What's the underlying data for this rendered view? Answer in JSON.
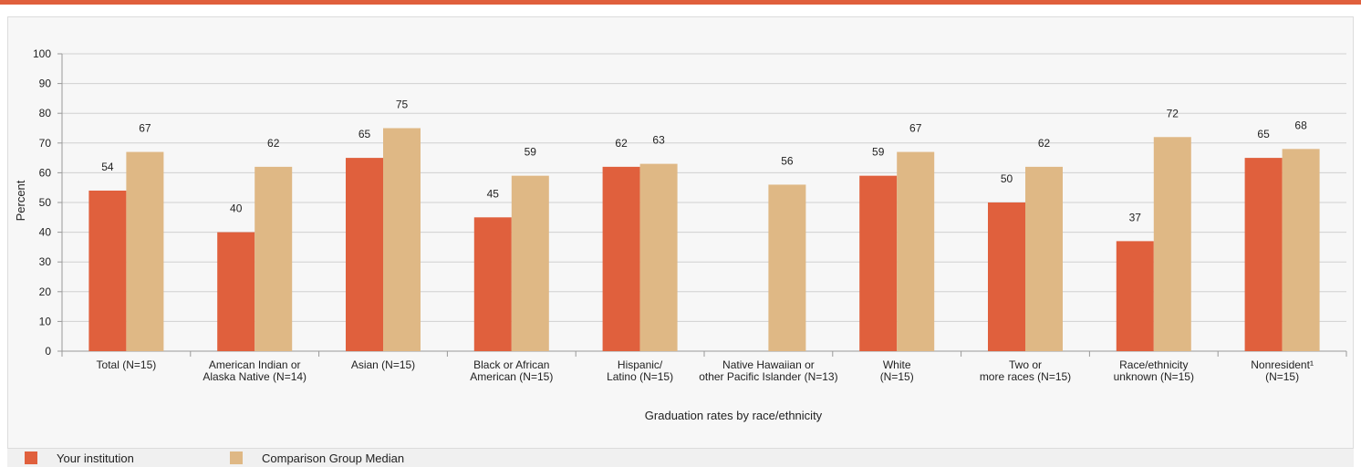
{
  "chart_data": {
    "type": "bar",
    "categories": [
      [
        "Total (N=15)"
      ],
      [
        "American Indian or",
        "Alaska Native (N=14)"
      ],
      [
        "Asian (N=15)"
      ],
      [
        "Black or African",
        "American (N=15)"
      ],
      [
        "Hispanic/",
        "Latino (N=15)"
      ],
      [
        "Native Hawaiian or",
        "other Pacific Islander (N=13)"
      ],
      [
        "White",
        "(N=15)"
      ],
      [
        "Two or",
        "more races (N=15)"
      ],
      [
        "Race/ethnicity",
        "unknown (N=15)"
      ],
      [
        "Nonresident¹",
        "(N=15)"
      ]
    ],
    "series": [
      {
        "name": "Your institution",
        "color": "#e0603d",
        "values": [
          54,
          40,
          65,
          45,
          62,
          null,
          59,
          50,
          37,
          65
        ]
      },
      {
        "name": "Comparison Group Median",
        "color": "#dfb885",
        "values": [
          67,
          62,
          75,
          59,
          63,
          56,
          67,
          62,
          72,
          68
        ]
      }
    ],
    "xlabel": "Graduation rates by race/ethnicity",
    "ylabel": "Percent",
    "ylim": [
      0,
      100
    ],
    "yticks": [
      0,
      10,
      20,
      30,
      40,
      50,
      60,
      70,
      80,
      90,
      100
    ],
    "grid": true,
    "legend_position": "bottom-left"
  },
  "theme": {
    "accent": "#e0603d",
    "comparison": "#dfb885",
    "grid": "#d0d0d0"
  }
}
